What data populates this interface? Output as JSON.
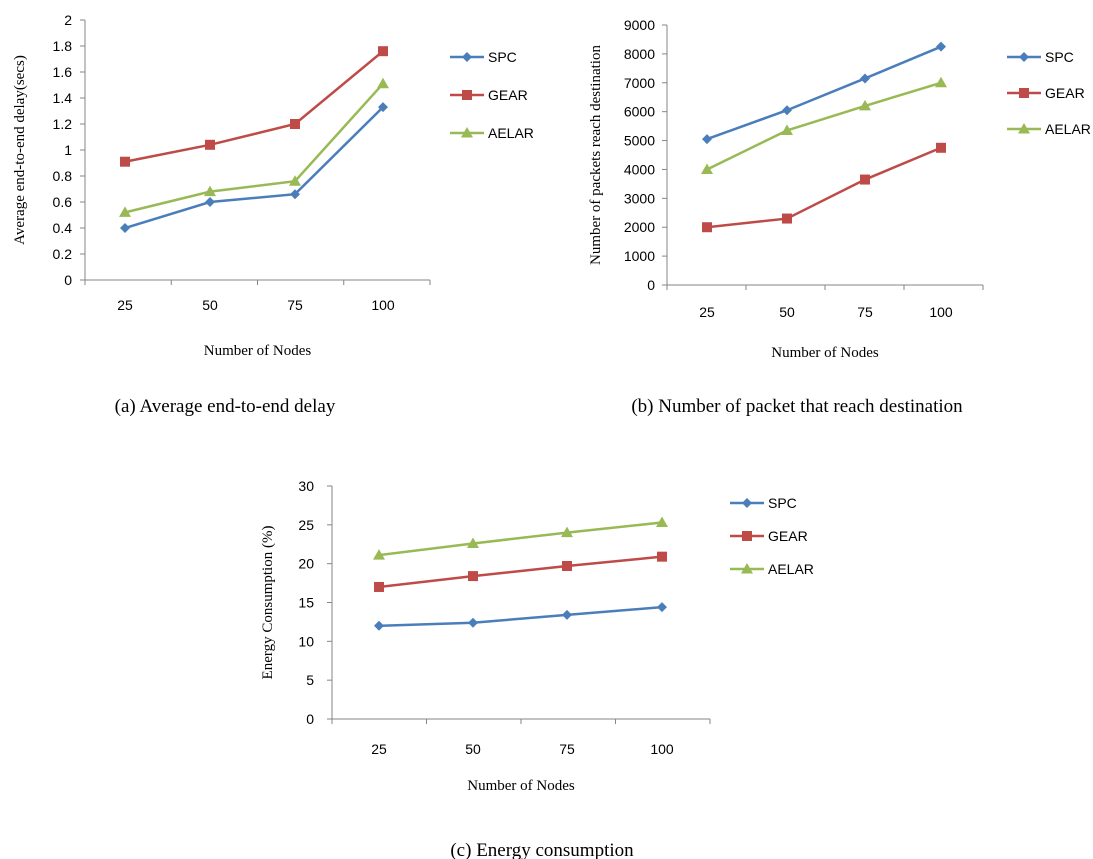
{
  "chart_data": [
    {
      "type": "line",
      "caption": "(a) Average end-to-end delay",
      "xlabel": "Number of Nodes",
      "ylabel": "Average end-to-end delay(secs)",
      "categories": [
        "25",
        "50",
        "75",
        "100"
      ],
      "ylim": [
        0,
        2
      ],
      "yticks": [
        "0",
        "0.2",
        "0.4",
        "0.6",
        "0.8",
        "1",
        "1.2",
        "1.4",
        "1.6",
        "1.8",
        "2"
      ],
      "grid": false,
      "legend_position": "right",
      "series": [
        {
          "name": "SPC",
          "color": "#4a7ebb",
          "marker": "diamond",
          "values": [
            0.4,
            0.6,
            0.66,
            1.33
          ]
        },
        {
          "name": "GEAR",
          "color": "#be4b48",
          "marker": "square",
          "values": [
            0.91,
            1.04,
            1.2,
            1.76
          ]
        },
        {
          "name": "AELAR",
          "color": "#98b954",
          "marker": "triangle",
          "values": [
            0.52,
            0.68,
            0.76,
            1.51
          ]
        }
      ]
    },
    {
      "type": "line",
      "caption": "(b) Number of packet that reach destination",
      "xlabel": "Number of Nodes",
      "ylabel": "Number of packets reach destination",
      "categories": [
        "25",
        "50",
        "75",
        "100"
      ],
      "ylim": [
        0,
        9000
      ],
      "yticks": [
        "0",
        "1000",
        "2000",
        "3000",
        "4000",
        "5000",
        "6000",
        "7000",
        "8000",
        "9000"
      ],
      "grid": false,
      "legend_position": "right",
      "series": [
        {
          "name": "SPC",
          "color": "#4a7ebb",
          "marker": "diamond",
          "values": [
            5050,
            6050,
            7150,
            8250
          ]
        },
        {
          "name": "GEAR",
          "color": "#be4b48",
          "marker": "square",
          "values": [
            2000,
            2300,
            3650,
            4750
          ]
        },
        {
          "name": "AELAR",
          "color": "#98b954",
          "marker": "triangle",
          "values": [
            4000,
            5350,
            6200,
            7000
          ]
        }
      ]
    },
    {
      "type": "line",
      "caption": "(c) Energy consumption",
      "xlabel": "Number of Nodes",
      "ylabel": "Energy Consumption (%)",
      "categories": [
        "25",
        "50",
        "75",
        "100"
      ],
      "ylim": [
        0,
        30
      ],
      "yticks": [
        "0",
        "5",
        "10",
        "15",
        "20",
        "25",
        "30"
      ],
      "grid": false,
      "legend_position": "right",
      "series": [
        {
          "name": "SPC",
          "color": "#4a7ebb",
          "marker": "diamond",
          "values": [
            12,
            12.4,
            13.4,
            14.4
          ]
        },
        {
          "name": "GEAR",
          "color": "#be4b48",
          "marker": "square",
          "values": [
            17,
            18.4,
            19.7,
            20.9
          ]
        },
        {
          "name": "AELAR",
          "color": "#98b954",
          "marker": "triangle",
          "values": [
            21.1,
            22.6,
            24,
            25.3
          ]
        }
      ]
    }
  ]
}
